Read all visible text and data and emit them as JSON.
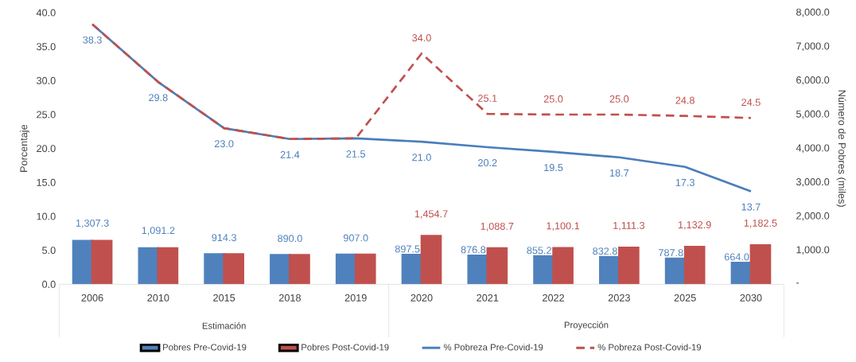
{
  "chart_data": {
    "type": "bar",
    "categories": [
      "2006",
      "2010",
      "2015",
      "2018",
      "2019",
      "2020",
      "2021",
      "2022",
      "2023",
      "2025",
      "2030"
    ],
    "ylabel": "Porcentaje",
    "y2label": "Número de Pobres (miles)",
    "ylim": [
      0,
      40
    ],
    "yticks": [
      {
        "value": 0,
        "label": "0.0"
      },
      {
        "value": 5,
        "label": "5.0"
      },
      {
        "value": 10,
        "label": "10.0"
      },
      {
        "value": 15,
        "label": "15.0"
      },
      {
        "value": 20,
        "label": "20.0"
      },
      {
        "value": 25,
        "label": "25.0"
      },
      {
        "value": 30,
        "label": "30.0"
      },
      {
        "value": 35,
        "label": "35.0"
      },
      {
        "value": 40,
        "label": "40.0"
      }
    ],
    "y2lim": [
      0,
      8000
    ],
    "y2ticks": [
      {
        "value": 0,
        "label": "-"
      },
      {
        "value": 1000,
        "label": "1,000.0"
      },
      {
        "value": 2000,
        "label": "2,000.0"
      },
      {
        "value": 3000,
        "label": "3,000.0"
      },
      {
        "value": 4000,
        "label": "4,000.0"
      },
      {
        "value": 5000,
        "label": "5,000.0"
      },
      {
        "value": 6000,
        "label": "6,000.0"
      },
      {
        "value": 7000,
        "label": "7,000.0"
      },
      {
        "value": 8000,
        "label": "8,000.0"
      }
    ],
    "series": [
      {
        "name": "Pobres Pre-Covid-19",
        "axis": "y2",
        "color": "#4f81bd",
        "values": [
          1307.3,
          1091.2,
          914.3,
          890.0,
          907.0,
          897.5,
          876.8,
          855.2,
          832.8,
          787.8,
          664.0
        ],
        "value_labels": [
          "1,307.3",
          "1,091.2",
          "914.3",
          "890.0",
          "907.0",
          "897.5",
          "876.8",
          "855.2",
          "832.8",
          "787.8",
          "664.0"
        ]
      },
      {
        "name": "Pobres Post-Covid-19",
        "axis": "y2",
        "color": "#c0504d",
        "values": [
          1307.3,
          1091.2,
          914.3,
          890.0,
          907.0,
          1454.7,
          1088.7,
          1100.1,
          1111.3,
          1132.9,
          1182.5
        ],
        "value_labels": [
          null,
          null,
          null,
          null,
          null,
          "1,454.7",
          "1,088.7",
          "1,100.1",
          "1,111.3",
          "1,132.9",
          "1,182.5"
        ]
      },
      {
        "name": "% Pobreza Pre-Covid-19",
        "type": "line",
        "line_style": "solid",
        "color": "#4a7ebb",
        "values": [
          38.3,
          29.8,
          23.0,
          21.4,
          21.5,
          21.0,
          20.2,
          19.5,
          18.7,
          17.3,
          13.7
        ],
        "value_labels": [
          "38.3",
          "29.8",
          "23.0",
          "21.4",
          "21.5",
          "21.0",
          "20.2",
          "19.5",
          "18.7",
          "17.3",
          "13.7"
        ]
      },
      {
        "name": "% Pobreza Post-Covid-19",
        "type": "line",
        "line_style": "dashed",
        "color": "#c0504d",
        "values": [
          38.3,
          29.8,
          23.0,
          21.4,
          21.5,
          34.0,
          25.1,
          25.0,
          25.0,
          24.8,
          24.5
        ],
        "value_labels": [
          null,
          null,
          null,
          null,
          null,
          "34.0",
          "25.1",
          "25.0",
          "25.0",
          "24.8",
          "24.5"
        ]
      }
    ],
    "annotations": [
      "Estimación",
      "Proyección"
    ],
    "legend": "bottom",
    "marker": "none"
  }
}
